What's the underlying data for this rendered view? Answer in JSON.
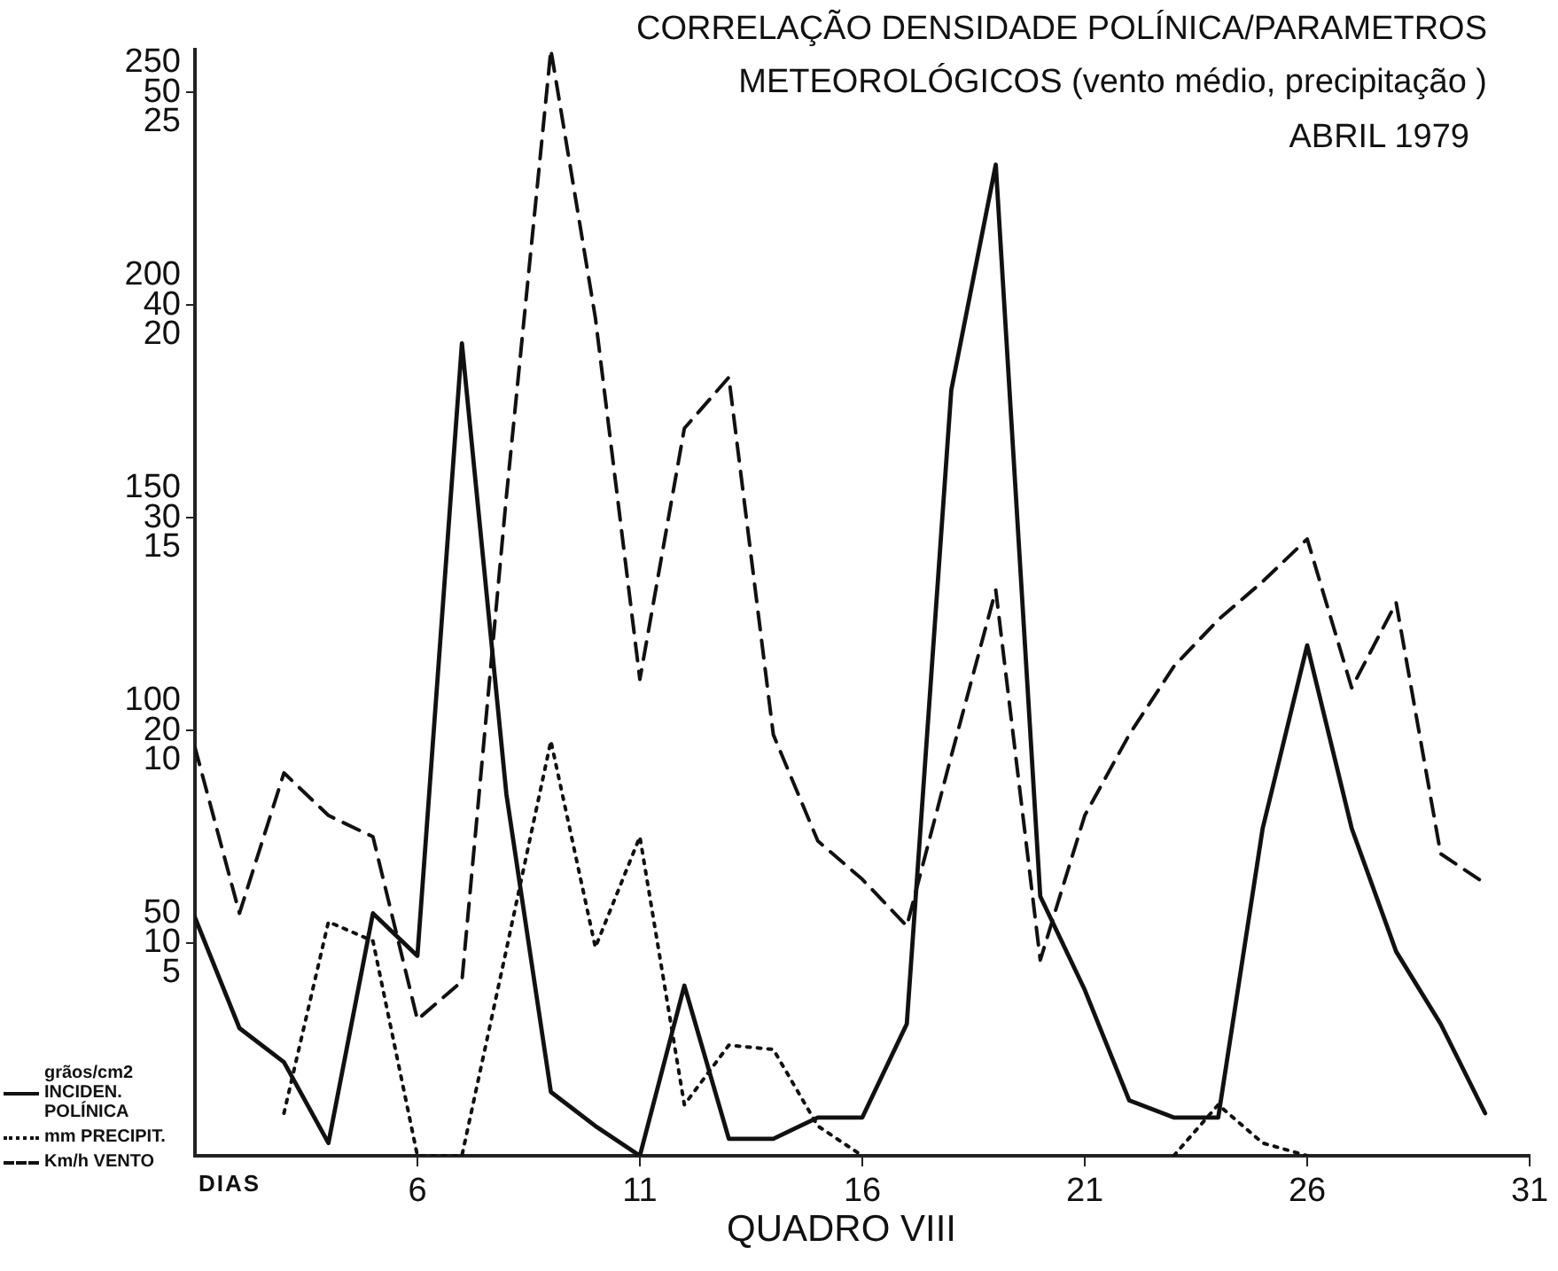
{
  "chart_data": {
    "type": "line",
    "title": "CORRELAÇÃO DENSIDADE POLÍNICA/PARAMETROS METEOROLÓGICOS (vento médio, precipitação )",
    "subtitle": "ABRIL 1979",
    "xlabel": "DIAS",
    "annotations": [
      "QUADRO VIII"
    ],
    "legend": "bottom left",
    "marker": "none",
    "x": [
      1,
      2,
      3,
      4,
      5,
      6,
      7,
      8,
      9,
      10,
      11,
      12,
      13,
      14,
      15,
      16,
      17,
      18,
      19,
      20,
      21,
      22,
      23,
      24,
      25,
      26,
      27,
      28,
      29,
      30
    ],
    "xlim": [
      1,
      31
    ],
    "xticks": [
      6,
      11,
      16,
      21,
      26,
      31
    ],
    "ylim": [
      0,
      260
    ],
    "yticks": [
      50,
      100,
      150,
      200,
      250
    ],
    "y2lim": [
      0,
      52
    ],
    "y2ticks": [
      10,
      20,
      30,
      40,
      50
    ],
    "y3lim": [
      0,
      26
    ],
    "y3ticks": [
      5,
      10,
      15,
      20,
      25
    ],
    "series": [
      {
        "name": "grãos/cm2 INCIDEN. POLÍNICA",
        "color": "#111111",
        "line_style": "solid",
        "values": [
          56,
          30,
          22,
          3,
          57,
          47,
          191,
          85,
          15,
          7,
          0,
          40,
          4,
          4,
          9,
          9,
          31,
          180,
          233,
          61,
          39,
          13,
          9,
          9,
          77,
          120,
          77,
          48,
          31,
          10
        ]
      },
      {
        "name": "mm PRECIPIT.",
        "color": "#111111",
        "line_style": "dotted",
        "axis": "y2",
        "values": [
          null,
          null,
          2,
          11,
          10.1,
          0,
          0,
          9.7,
          19.5,
          9.8,
          15,
          2.4,
          5.2,
          5,
          1.4,
          0,
          null,
          null,
          null,
          null,
          null,
          null,
          0,
          2.4,
          0.6,
          0,
          null,
          null,
          null,
          null
        ]
      },
      {
        "name": "Km/h VENTO",
        "color": "#111111",
        "line_style": "dashed",
        "axis": "y3",
        "values": [
          9.6,
          5.7,
          9,
          8,
          7.5,
          3.2,
          4.1,
          15.5,
          26,
          19.7,
          11.2,
          17.1,
          18.3,
          9.9,
          7.4,
          6.5,
          5.4,
          9.4,
          13.3,
          4.6,
          8,
          9.9,
          11.5,
          12.6,
          13.5,
          14.5,
          11,
          13,
          7.1,
          6.4
        ]
      }
    ]
  }
}
